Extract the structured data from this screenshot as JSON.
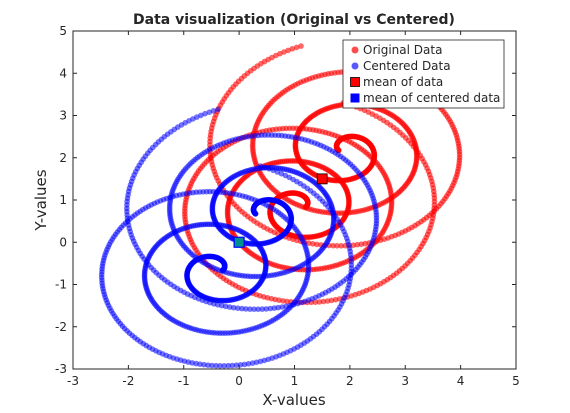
{
  "chart_data": {
    "type": "scatter",
    "title": "Data visualization (Original vs Centered)",
    "xlabel": "X-values",
    "ylabel": "Y-values",
    "xlim": [
      -3,
      5
    ],
    "ylim": [
      -3,
      5
    ],
    "xticks": [
      "-3",
      "-2",
      "-1",
      "0",
      "1",
      "2",
      "3",
      "4",
      "5"
    ],
    "yticks": [
      "-3",
      "-2",
      "-1",
      "0",
      "1",
      "2",
      "3",
      "4",
      "5"
    ],
    "grid": false,
    "box": true,
    "legend_position": "top-right",
    "legend": [
      {
        "label": "Original Data",
        "marker": "circle",
        "color": "#ff0000"
      },
      {
        "label": "Centered Data",
        "marker": "circle",
        "color": "#0000ff"
      },
      {
        "label": "mean of data",
        "marker": "square",
        "color": "#ff0000"
      },
      {
        "label": "mean of centered data",
        "marker": "square",
        "color": "#0000ff"
      }
    ],
    "series_description": "two interlocking spirals per series",
    "original_mean": [
      1.5,
      1.5
    ],
    "centered_mean": [
      0,
      0
    ],
    "spirals": [
      {
        "center": [
          1.08,
          0.83
        ],
        "direction": 1
      },
      {
        "center": [
          1.92,
          2.17
        ],
        "direction": -1
      }
    ],
    "spiral_params": {
      "turns": 3.2,
      "max_radius": 2.6,
      "count": 620
    },
    "colors": {
      "original": "#ff0000",
      "centered": "#0000ff",
      "axis": "#262626"
    }
  }
}
